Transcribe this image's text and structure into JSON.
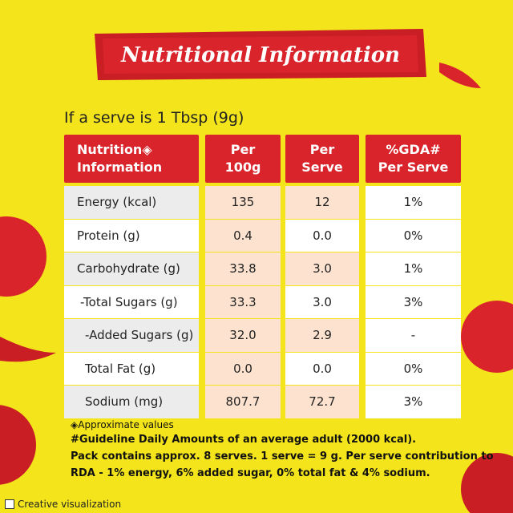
{
  "header": {
    "title": "Nutritional Information"
  },
  "serve": "If a serve is 1 Tbsp (9g)",
  "table": {
    "headers": [
      [
        "Nutrition◈",
        "Information"
      ],
      [
        "Per",
        "100g"
      ],
      [
        "Per",
        "Serve"
      ],
      [
        "%GDA#",
        "Per Serve"
      ]
    ],
    "rows": [
      [
        "Energy (kcal)",
        "135",
        "12",
        "1%"
      ],
      [
        "Protein (g)",
        "0.4",
        "0.0",
        "0%"
      ],
      [
        "Carbohydrate (g)",
        "33.8",
        "3.0",
        "1%"
      ],
      [
        "-Total Sugars (g)",
        "33.3",
        "3.0",
        "3%"
      ],
      [
        "-Added Sugars (g)",
        "32.0",
        "2.9",
        "-"
      ],
      [
        "Total Fat (g)",
        "0.0",
        "0.0",
        "0%"
      ],
      [
        "Sodium (mg)",
        "807.7",
        "72.7",
        "3%"
      ]
    ]
  },
  "notes": [
    "◈Approximate values",
    "#Guideline Daily Amounts of an average adult (2000 kcal).",
    "Pack contains approx. 8 serves. 1 serve = 9 g. Per serve contribution to",
    "RDA - 1% energy, 6% added sugar, 0% total fat & 4% sodium."
  ],
  "footer": "Creative visualization"
}
